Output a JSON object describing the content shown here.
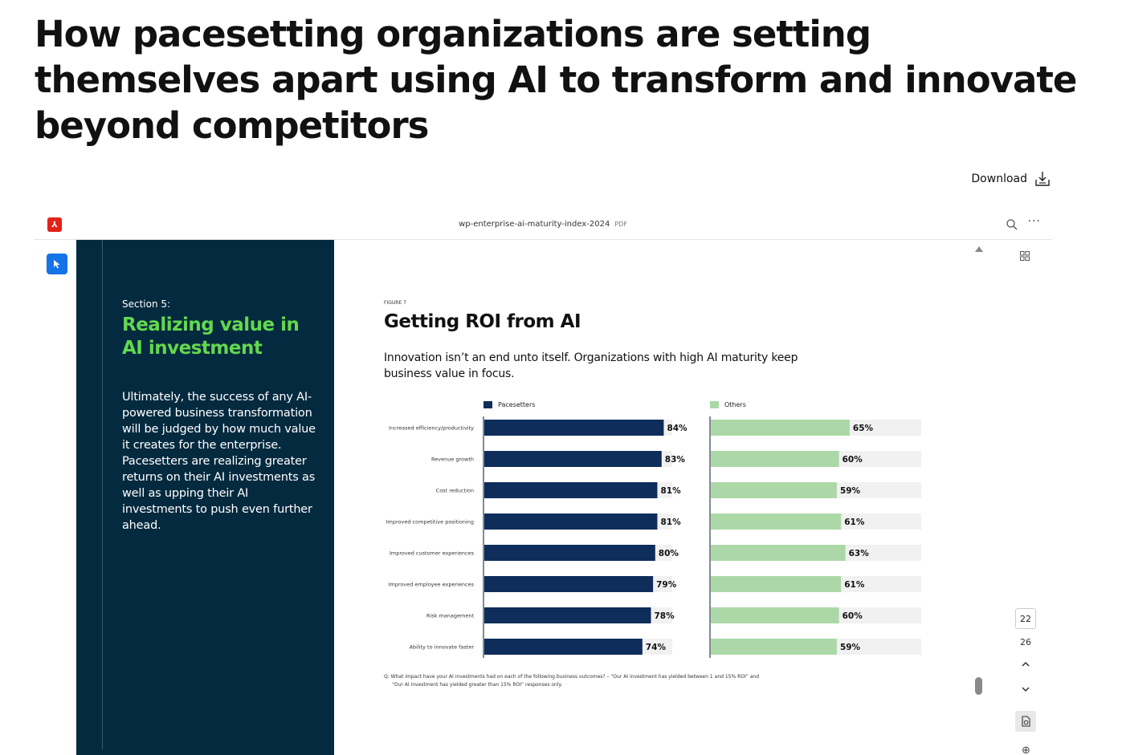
{
  "page": {
    "heading": "How pacesetting organizations are setting themselves apart using AI to transform and innovate beyond competitors",
    "download_label": "Download"
  },
  "viewer": {
    "file_name": "wp-enterprise-ai-maturity-index-2024",
    "file_ext": "PDF",
    "current_page": "22",
    "total_pages": "26"
  },
  "pdf": {
    "section_label": "Section 5:",
    "section_title": "Realizing value in AI investment",
    "section_body": "Ultimately, the success of any AI-powered business transformation will be judged by how much value it creates for the enterprise. Pacesetters are realizing greater returns on their AI investments as well as upping their AI investments to push even further ahead.",
    "figure_label": "FIGURE 7",
    "figure_title": "Getting ROI from AI",
    "figure_subtitle": "Innovation isn’t an end unto itself. Organizations with high AI maturity keep business value in focus.",
    "footnote_line1": "Q: What impact have your AI investments had on each of the following business outcomes? – “Our AI investment has yielded between 1 and 15% ROI” and",
    "footnote_line2": "“Our AI investment has yielded greater than 15% ROI” responses only."
  },
  "chart_data": {
    "type": "bar",
    "orientation": "horizontal",
    "categories": [
      "Increased efficiency/productivity",
      "Revenue growth",
      "Cost reduction",
      "Improved competitive positioning",
      "Improved customer experiences",
      "Improved employee experiences",
      "Risk management",
      "Ability to innovate faster"
    ],
    "series": [
      {
        "name": "Pacesetters",
        "values": [
          84,
          83,
          81,
          81,
          80,
          79,
          78,
          74
        ],
        "color": "#0e2d5a",
        "labels": [
          "84%",
          "83%",
          "81%",
          "81%",
          "80%",
          "79%",
          "78%",
          "74%"
        ]
      },
      {
        "name": "Others",
        "values": [
          65,
          60,
          59,
          61,
          63,
          61,
          60,
          59
        ],
        "color": "#acd8a7",
        "labels": [
          "65%",
          "60%",
          "59%",
          "61%",
          "63%",
          "61%",
          "60%",
          "59%"
        ]
      }
    ],
    "xlim": [
      0,
      100
    ],
    "track_color": "#f1f1f1",
    "legend_position": "top"
  },
  "colors": {
    "panel_bg": "#042a3f",
    "section_title": "#62d84e",
    "accent_blue": "#1473e6",
    "pdf_red": "#e2231a"
  }
}
